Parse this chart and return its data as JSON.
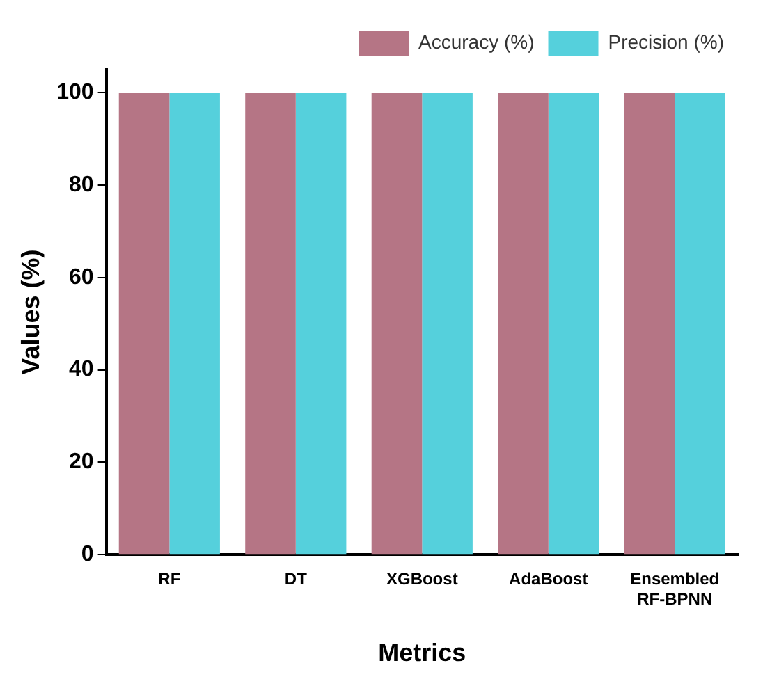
{
  "chart_data": {
    "type": "bar",
    "xlabel": "Metrics",
    "ylabel": "Values (%)",
    "categories": [
      "RF",
      "DT",
      "XGBoost",
      "AdaBoost",
      "Ensembled\nRF-BPNN"
    ],
    "series": [
      {
        "name": "Accuracy (%)",
        "color": "#b57585",
        "values": [
          100,
          100,
          100,
          100,
          100
        ]
      },
      {
        "name": "Precision (%)",
        "color": "#55d0dc",
        "values": [
          100,
          100,
          100,
          100,
          100
        ]
      }
    ],
    "ylim": [
      0,
      105
    ],
    "yticks": [
      0,
      20,
      40,
      60,
      80,
      100
    ],
    "grid": false,
    "legend": "top right"
  }
}
